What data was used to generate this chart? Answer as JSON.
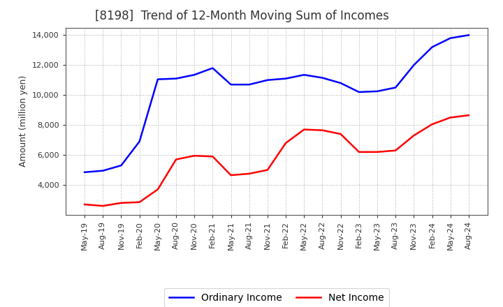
{
  "title": "[8198]  Trend of 12-Month Moving Sum of Incomes",
  "ylabel": "Amount (million yen)",
  "ylim": [
    2000,
    14500
  ],
  "yticks": [
    4000,
    6000,
    8000,
    10000,
    12000,
    14000
  ],
  "x_labels": [
    "May-19",
    "Aug-19",
    "Nov-19",
    "Feb-20",
    "May-20",
    "Aug-20",
    "Nov-20",
    "Feb-21",
    "May-21",
    "Aug-21",
    "Nov-21",
    "Feb-22",
    "May-22",
    "Aug-22",
    "Nov-22",
    "Feb-23",
    "May-23",
    "Aug-23",
    "Nov-23",
    "Feb-24",
    "May-24",
    "Aug-24"
  ],
  "ordinary_income": [
    4850,
    4950,
    5300,
    6900,
    11050,
    11100,
    11350,
    11800,
    10700,
    10700,
    11000,
    11100,
    11350,
    11150,
    10800,
    10200,
    10250,
    10500,
    12000,
    13200,
    13800,
    14000
  ],
  "net_income": [
    2700,
    2600,
    2800,
    2850,
    3700,
    5700,
    5950,
    5900,
    4650,
    4750,
    5000,
    6800,
    7700,
    7650,
    7400,
    6200,
    6200,
    6300,
    7300,
    8050,
    8500,
    8650
  ],
  "ordinary_color": "#0000FF",
  "net_color": "#FF0000",
  "background_color": "#FFFFFF",
  "grid_color": "#AAAAAA",
  "title_fontsize": 12,
  "ylabel_fontsize": 9,
  "tick_fontsize": 8,
  "legend_fontsize": 10,
  "line_width": 1.8,
  "legend_labels": [
    "Ordinary Income",
    "Net Income"
  ]
}
